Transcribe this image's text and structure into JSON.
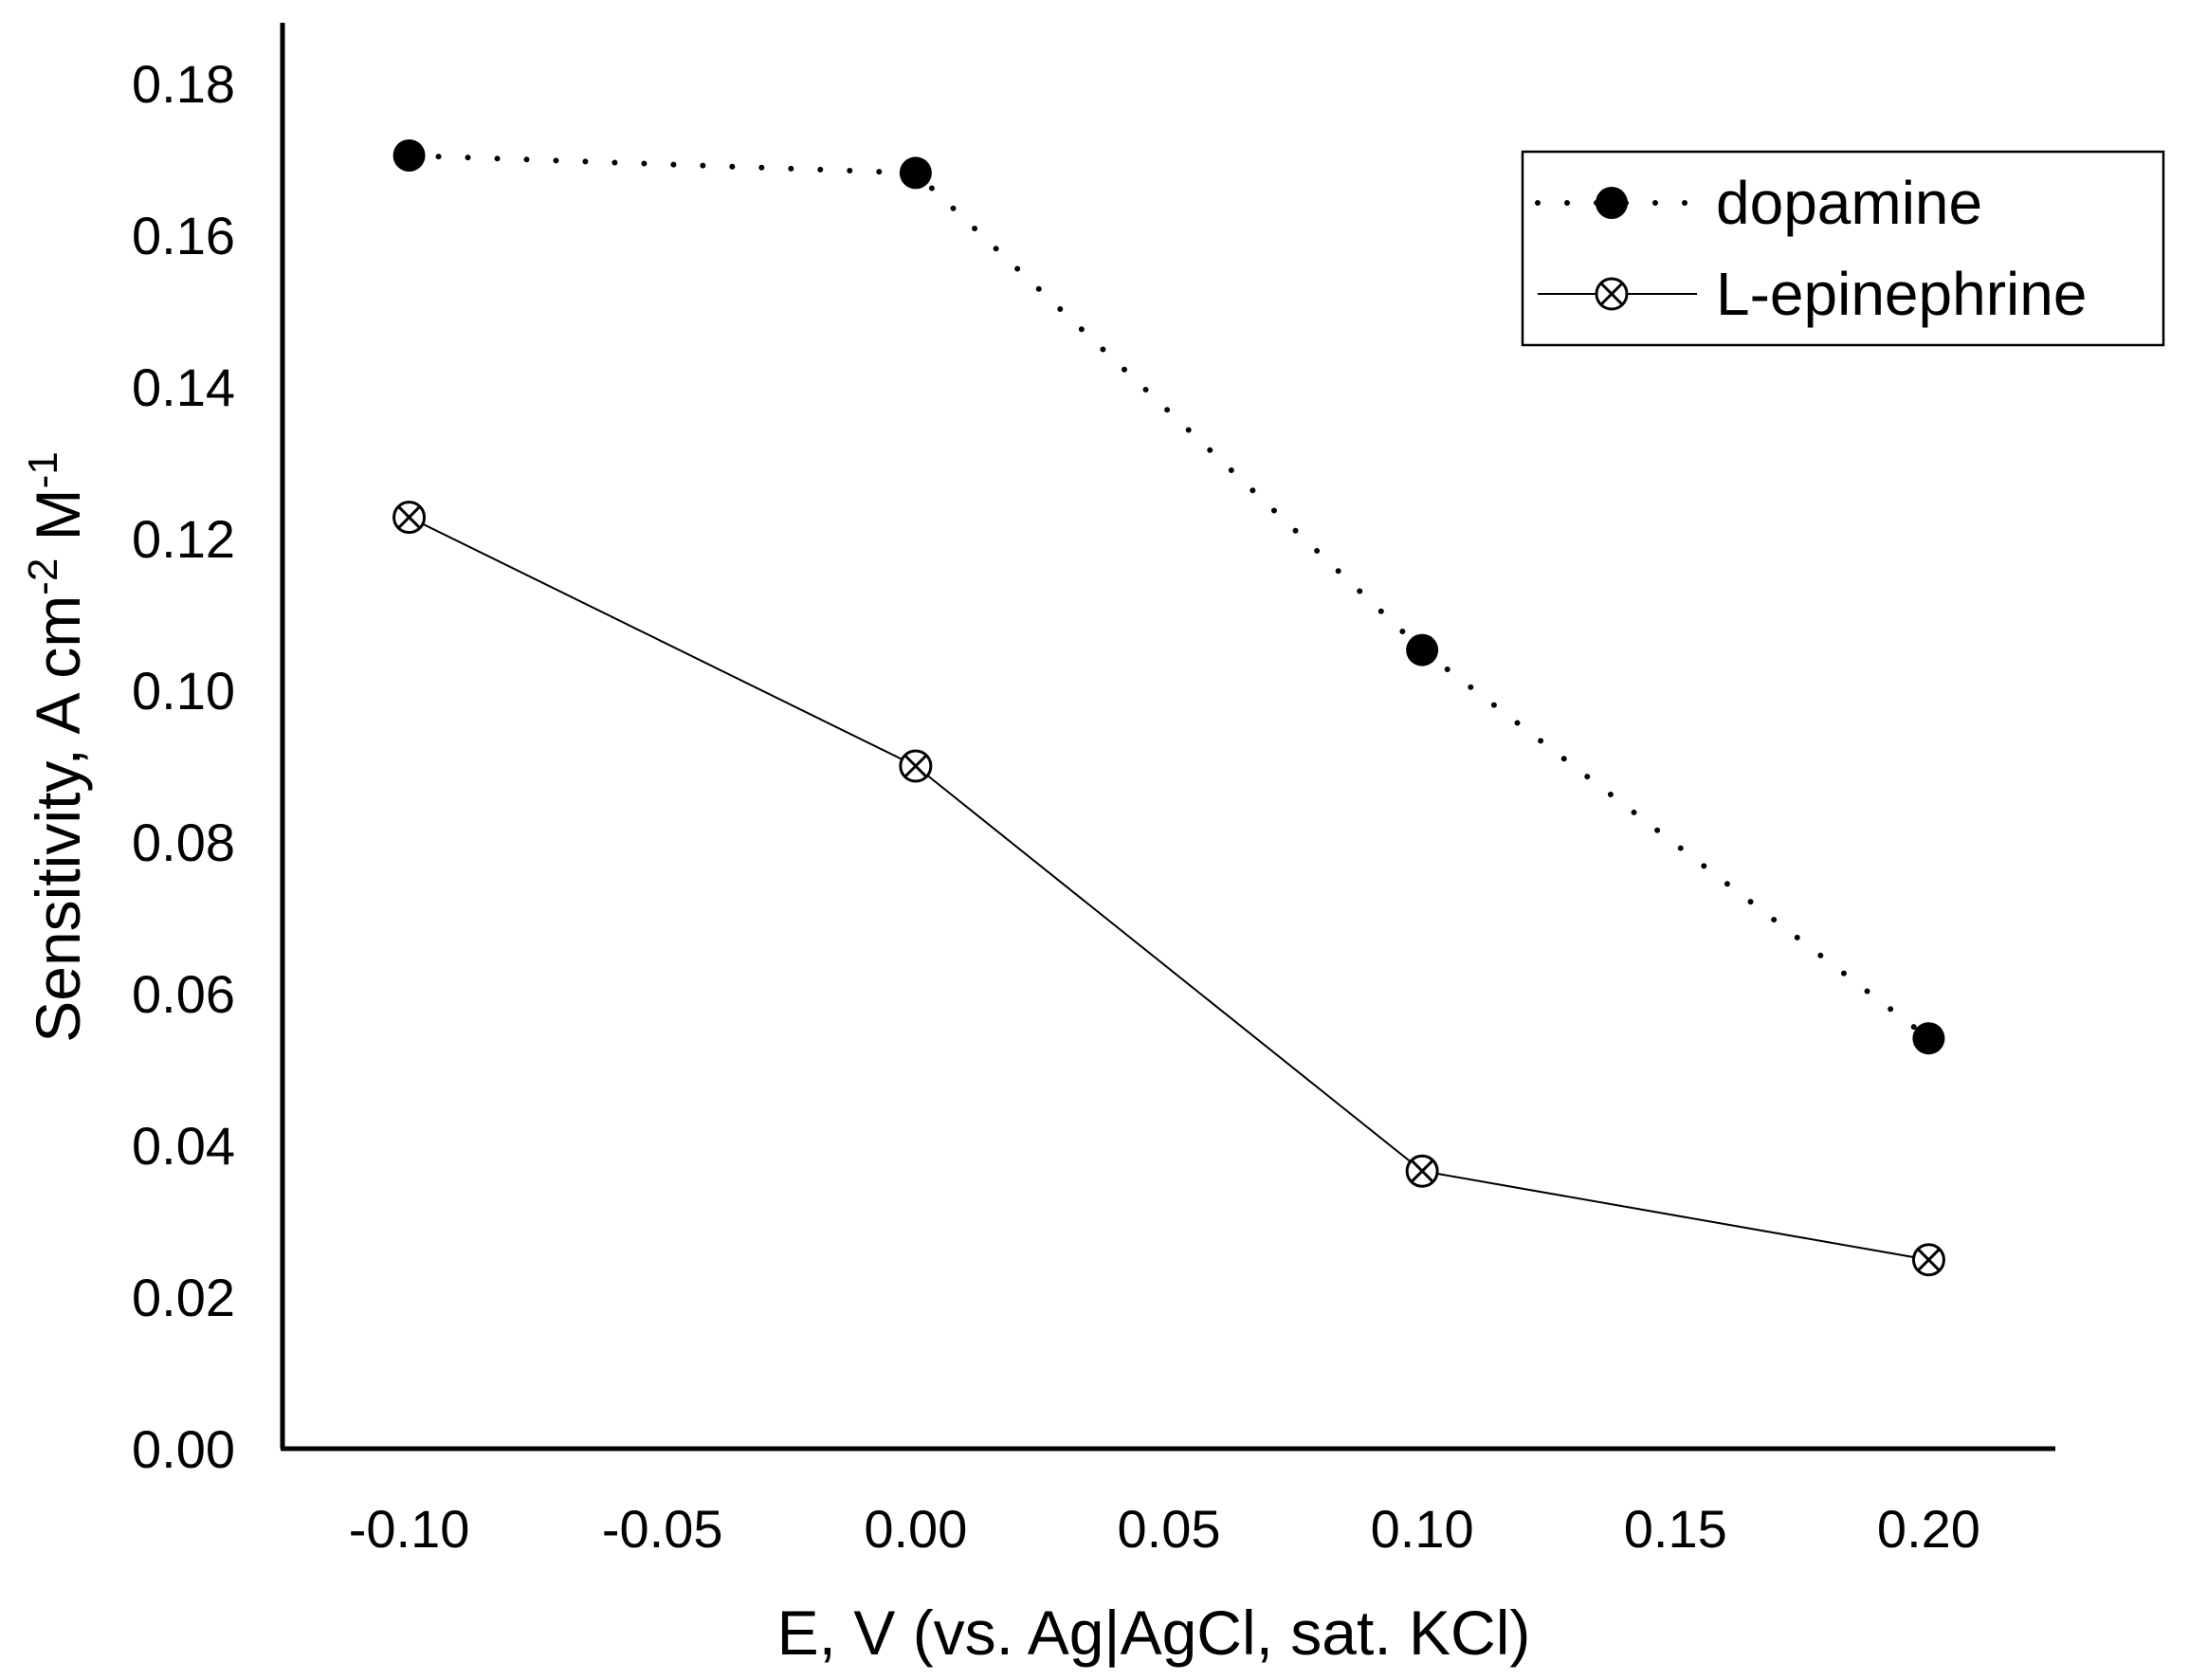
{
  "chart_data": {
    "type": "line",
    "title": "",
    "xlabel": "E, V (vs. Ag|AgCl, sat. KCl)",
    "ylabel": {
      "main": "Sensitivity, A cm",
      "exp1": "-2",
      "mid": " M",
      "exp2": "-1"
    },
    "xlim": [
      -0.125,
      0.225
    ],
    "ylim": [
      0.0,
      0.188
    ],
    "x_ticks": [
      -0.1,
      -0.05,
      0.0,
      0.05,
      0.1,
      0.15,
      0.2
    ],
    "x_tick_labels": [
      "-0.10",
      "-0.05",
      "0.00",
      "0.05",
      "0.10",
      "0.15",
      "0.20"
    ],
    "y_ticks": [
      0.0,
      0.02,
      0.04,
      0.06,
      0.08,
      0.1,
      0.12,
      0.14,
      0.16,
      0.18
    ],
    "y_tick_labels": [
      "0.00",
      "0.02",
      "0.04",
      "0.06",
      "0.08",
      "0.10",
      "0.12",
      "0.14",
      "0.16",
      "0.18"
    ],
    "grid": false,
    "legend_position": "top-right",
    "series": [
      {
        "name": "dopamine",
        "x": [
          -0.1,
          0.0,
          0.1,
          0.2
        ],
        "y": [
          0.1705,
          0.1682,
          0.1053,
          0.0541
        ],
        "line": "dotted",
        "marker": "filled-circle",
        "color": "#000000"
      },
      {
        "name": "L-epinephrine",
        "x": [
          -0.1,
          0.0,
          0.1,
          0.2
        ],
        "y": [
          0.1228,
          0.09,
          0.0366,
          0.0249
        ],
        "line": "solid",
        "marker": "circle-x",
        "color": "#000000"
      }
    ]
  }
}
